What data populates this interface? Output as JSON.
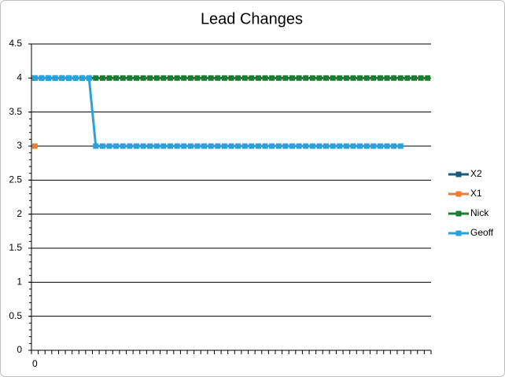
{
  "chart_data": {
    "type": "line",
    "title": "Lead Changes",
    "categories": [
      0,
      null,
      null,
      null,
      null,
      null,
      null,
      null,
      null,
      null,
      null,
      null,
      null,
      null,
      null,
      null,
      null,
      null,
      null,
      null,
      null,
      null,
      null,
      null,
      null,
      null,
      null,
      null,
      null,
      null,
      null,
      null,
      null,
      null,
      null,
      null,
      null,
      null,
      null,
      null,
      null,
      null,
      null,
      null,
      null,
      null,
      null,
      null,
      null,
      null,
      null,
      null,
      null,
      null,
      null,
      null,
      null,
      null,
      null
    ],
    "ylim": [
      0,
      4.5
    ],
    "yticks": [
      0,
      0.5,
      1,
      1.5,
      2,
      2.5,
      3,
      3.5,
      4,
      4.5
    ],
    "grid": true,
    "legend": "right",
    "series": [
      {
        "name": "X2",
        "color": "#1d5b79",
        "values": [
          null,
          null,
          null,
          null,
          null,
          null,
          null,
          null,
          null,
          null,
          null,
          null,
          null,
          null,
          null,
          null,
          null,
          null,
          null,
          null,
          null,
          null,
          null,
          null,
          null,
          null,
          null,
          null,
          null,
          null,
          null,
          null,
          null,
          null,
          null,
          null,
          null,
          null,
          null,
          null,
          null,
          null,
          null,
          null,
          null,
          null,
          null,
          null,
          null,
          null,
          null,
          null,
          null,
          null,
          null,
          null,
          null,
          null,
          null
        ]
      },
      {
        "name": "X1",
        "color": "#ed7d31",
        "values": [
          3,
          null,
          null,
          null,
          null,
          null,
          null,
          null,
          null,
          null,
          null,
          null,
          null,
          null,
          null,
          null,
          null,
          null,
          null,
          null,
          null,
          null,
          null,
          null,
          null,
          null,
          null,
          null,
          null,
          null,
          null,
          null,
          null,
          null,
          null,
          null,
          null,
          null,
          null,
          null,
          null,
          null,
          null,
          null,
          null,
          null,
          null,
          null,
          null,
          null,
          null,
          null,
          null,
          null,
          null,
          null,
          null,
          null,
          null
        ]
      },
      {
        "name": "Nick",
        "color": "#1e7a34",
        "values": [
          4,
          4,
          4,
          4,
          4,
          4,
          4,
          4,
          4,
          4,
          4,
          4,
          4,
          4,
          4,
          4,
          4,
          4,
          4,
          4,
          4,
          4,
          4,
          4,
          4,
          4,
          4,
          4,
          4,
          4,
          4,
          4,
          4,
          4,
          4,
          4,
          4,
          4,
          4,
          4,
          4,
          4,
          4,
          4,
          4,
          4,
          4,
          4,
          4,
          4,
          4,
          4,
          4,
          4,
          4,
          4,
          4,
          4,
          4
        ]
      },
      {
        "name": "Geoff",
        "color": "#2aa1d8",
        "values": [
          4,
          4,
          4,
          4,
          4,
          4,
          4,
          4,
          4,
          3,
          3,
          3,
          3,
          3,
          3,
          3,
          3,
          3,
          3,
          3,
          3,
          3,
          3,
          3,
          3,
          3,
          3,
          3,
          3,
          3,
          3,
          3,
          3,
          3,
          3,
          3,
          3,
          3,
          3,
          3,
          3,
          3,
          3,
          3,
          3,
          3,
          3,
          3,
          3,
          3,
          3,
          3,
          3,
          3,
          3,
          null,
          null,
          null,
          null
        ]
      }
    ]
  }
}
